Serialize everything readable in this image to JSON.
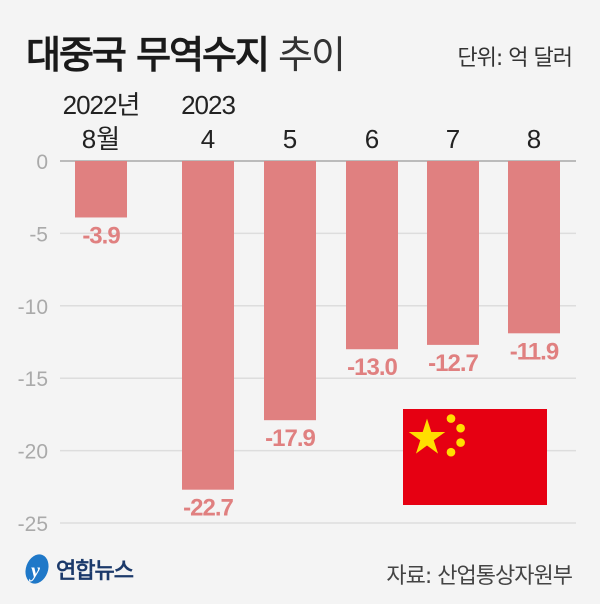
{
  "title_bold": "대중국 무역수지",
  "title_light": "추이",
  "unit": "단위: 억 달러",
  "source": "자료: 산업통상자원부",
  "logo_text": "연합뉴스",
  "colors": {
    "bar": "#e08080",
    "label": "#e08080",
    "flag": "#e60012",
    "star": "#ffde00"
  },
  "chart_data": {
    "type": "bar",
    "title": "대중국 무역수지 추이",
    "ylabel": "억 달러",
    "categories": [
      "8월",
      "4",
      "5",
      "6",
      "7",
      "8"
    ],
    "year_labels": [
      "2022년",
      "2023",
      "",
      "",
      "",
      ""
    ],
    "values": [
      -3.9,
      -22.7,
      -17.9,
      -13.0,
      -12.7,
      -11.9
    ],
    "value_labels": [
      "-3.9",
      "-22.7",
      "-17.9",
      "-13.0",
      "-12.7",
      "-11.9"
    ],
    "yticks": [
      0,
      -5,
      -10,
      -15,
      -20,
      -25
    ],
    "ytick_labels": [
      "0",
      "-5",
      "-10",
      "-15",
      "-20",
      "-25"
    ],
    "ylim": [
      -25,
      0
    ],
    "grid": true
  }
}
